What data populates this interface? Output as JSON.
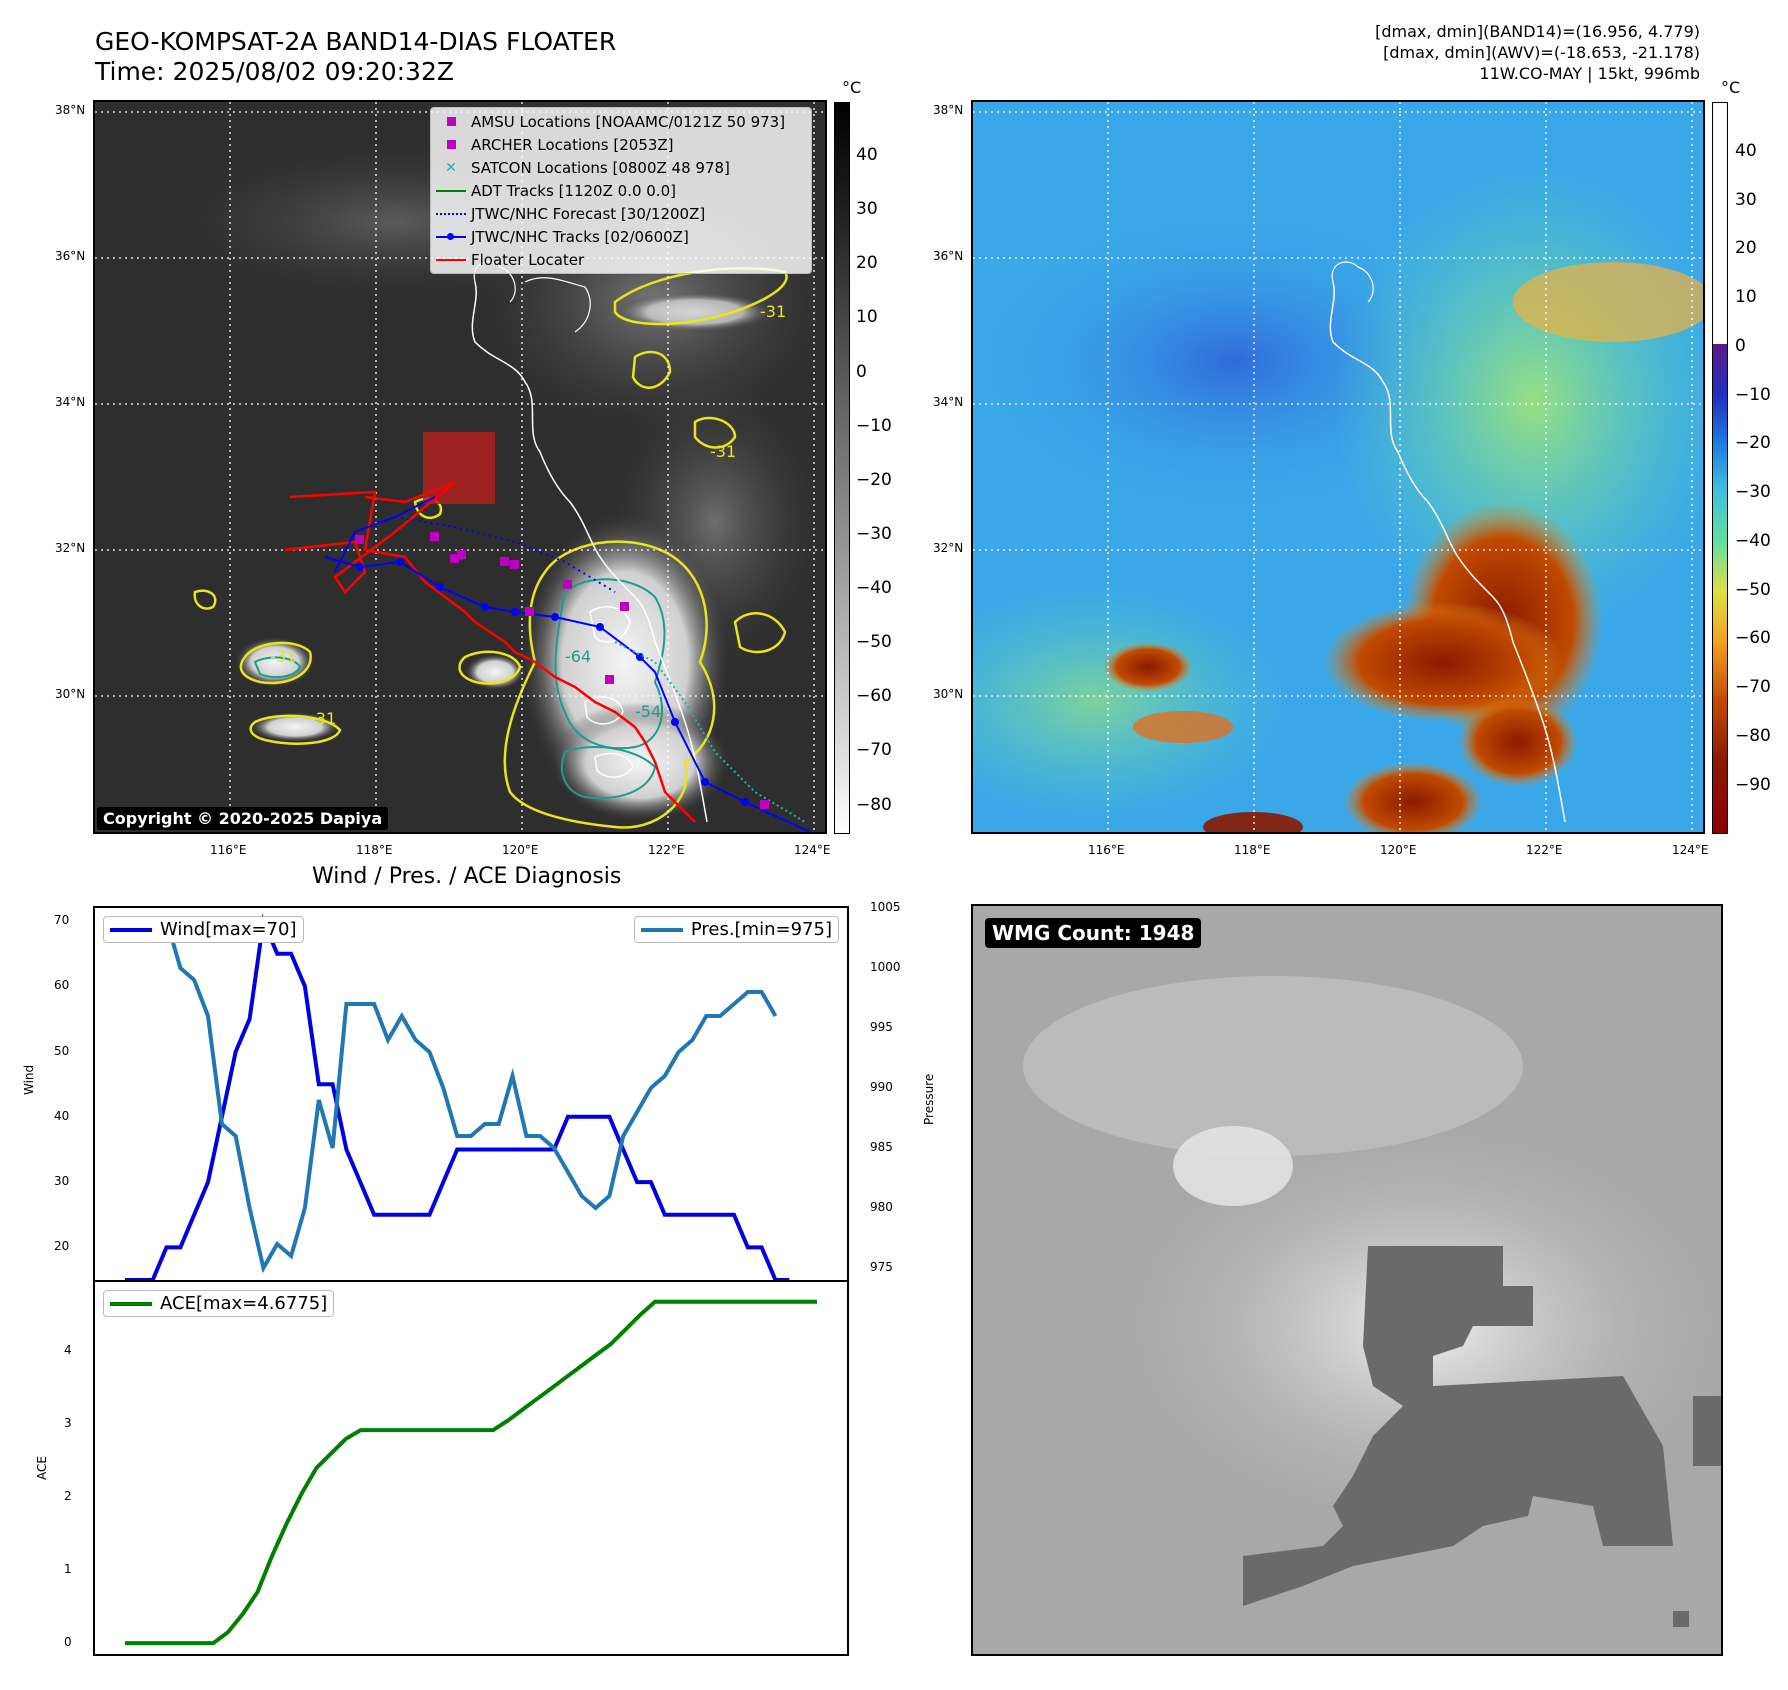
{
  "header": {
    "title_line1": "GEO-KOMPSAT-2A BAND14-DIAS FLOATER",
    "title_line2": "Time: 2025/08/02 09:20:32Z",
    "info_line1": "[dmax, dmin](BAND14)=(16.956, 4.779)",
    "info_line2": "[dmax, dmin](AWV)=(-18.653, -21.178)",
    "info_line3": "11W.CO-MAY | 15kt, 996mb"
  },
  "map": {
    "lat_labels": [
      "38°N",
      "36°N",
      "34°N",
      "32°N",
      "30°N"
    ],
    "lon_labels": [
      "116°E",
      "118°E",
      "120°E",
      "122°E",
      "124°E"
    ],
    "colorbar_unit": "°C",
    "left_colorbar_ticks": [
      "40",
      "30",
      "20",
      "10",
      "0",
      "−10",
      "−20",
      "−30",
      "−40",
      "−50",
      "−60",
      "−70",
      "−80"
    ],
    "right_colorbar_ticks": [
      "40",
      "30",
      "20",
      "10",
      "0",
      "−10",
      "−20",
      "−30",
      "−40",
      "−50",
      "−60",
      "−70",
      "−80",
      "−90"
    ],
    "contour_labels": [
      "-31",
      "-31",
      "-31",
      "-31",
      "-64",
      "-54"
    ],
    "copyright": "Copyright © 2020-2025 Dapiya",
    "legend": [
      {
        "label": "AMSU Locations [NOAAMC/0121Z 50 973]",
        "icon": "square-marker",
        "color": "#c000c0"
      },
      {
        "label": "ARCHER Locations [2053Z]",
        "icon": "square-marker",
        "color": "#c000c0"
      },
      {
        "label": "SATCON Locations [0800Z 48 978]",
        "icon": "x-marker",
        "color": "#20b2aa"
      },
      {
        "label": "ADT Tracks [1120Z 0.0 0.0]",
        "icon": "line",
        "color": "#008000"
      },
      {
        "label": "JTWC/NHC Forecast [30/1200Z]",
        "icon": "dotted-line",
        "color": "#0000ff"
      },
      {
        "label": "JTWC/NHC Tracks [02/0600Z]",
        "icon": "line-dot",
        "color": "#0000ff"
      },
      {
        "label": "Floater Locater",
        "icon": "line",
        "color": "#ff0000"
      }
    ]
  },
  "diagnosis": {
    "title": "Wind / Pres. / ACE Diagnosis",
    "wind_legend": "Wind[max=70]",
    "pres_legend": "Pres.[min=975]",
    "ace_legend": "ACE[max=4.6775]",
    "wind_ylabel": "Wind",
    "pres_ylabel": "Pressure",
    "ace_ylabel": "ACE",
    "wmg_label": "WMG Count: 1948"
  },
  "chart_data": [
    {
      "type": "line",
      "x": [
        0,
        1,
        2,
        3,
        4,
        5,
        6,
        7,
        8,
        9,
        10,
        11,
        12,
        13,
        14,
        15,
        16,
        17,
        18,
        19,
        20,
        21,
        22,
        23,
        24,
        25,
        26,
        27,
        28,
        29,
        30,
        31,
        32,
        33,
        34,
        35,
        36,
        37,
        38,
        39,
        40,
        41,
        42,
        43,
        44,
        45,
        46,
        47,
        48,
        49,
        50
      ],
      "series": [
        {
          "name": "Wind[max=70]",
          "color": "#0000e0",
          "axis": "left",
          "values": [
            15,
            15,
            15,
            20,
            20,
            25,
            30,
            40,
            50,
            55,
            70,
            65,
            65,
            60,
            45,
            45,
            35,
            30,
            25,
            25,
            25,
            25,
            25,
            30,
            35,
            35,
            35,
            35,
            35,
            35,
            35,
            35,
            40,
            40,
            40,
            40,
            35,
            30,
            30,
            25,
            25,
            25,
            25,
            25,
            25,
            20,
            20,
            15,
            15,
            null,
            null
          ]
        },
        {
          "name": "Pres.[min=975]",
          "color": "#1f77b4",
          "axis": "right",
          "values": [
            1004,
            1004,
            1004,
            1004,
            1000,
            999,
            996,
            987,
            986,
            980,
            975,
            977,
            976,
            980,
            989,
            985,
            997,
            997,
            997,
            994,
            996,
            994,
            993,
            990,
            986,
            986,
            987,
            987,
            991,
            986,
            986,
            985,
            983,
            981,
            980,
            981,
            986,
            988,
            990,
            991,
            993,
            994,
            996,
            996,
            997,
            998,
            998,
            996,
            null,
            null,
            null
          ]
        }
      ],
      "ylim_left": [
        15,
        72
      ],
      "ylim_right": [
        974,
        1005
      ],
      "yticks_left": [
        20,
        30,
        40,
        50,
        60,
        70
      ],
      "yticks_right": [
        975,
        980,
        985,
        990,
        995,
        1000,
        1005
      ],
      "ylabel": "Wind",
      "ylabel_right": "Pressure"
    },
    {
      "type": "line",
      "x": [
        0,
        1,
        2,
        3,
        4,
        5,
        6,
        7,
        8,
        9,
        10,
        11,
        12,
        13,
        14,
        15,
        16,
        17,
        18,
        19,
        20,
        21,
        22,
        23,
        24,
        25,
        26,
        27,
        28,
        29,
        30,
        31,
        32,
        33,
        34,
        35,
        36,
        37,
        38,
        39,
        40,
        41,
        42,
        43,
        44,
        45,
        46,
        47
      ],
      "series": [
        {
          "name": "ACE[max=4.6775]",
          "color": "#008000",
          "values": [
            0,
            0,
            0,
            0,
            0,
            0,
            0,
            0.15,
            0.4,
            0.7,
            1.2,
            1.65,
            2.05,
            2.4,
            2.6,
            2.8,
            2.92,
            2.92,
            2.92,
            2.92,
            2.92,
            2.92,
            2.92,
            2.92,
            2.92,
            2.92,
            3.05,
            3.2,
            3.35,
            3.5,
            3.65,
            3.8,
            3.95,
            4.1,
            4.3,
            4.5,
            4.68,
            4.68,
            4.68,
            4.68,
            4.68,
            4.68,
            4.68,
            4.68,
            4.68,
            4.68,
            4.68,
            4.68
          ]
        }
      ],
      "ylim": [
        -0.15,
        4.95
      ],
      "yticks": [
        0,
        1,
        2,
        3,
        4
      ],
      "ylabel": "ACE"
    }
  ]
}
